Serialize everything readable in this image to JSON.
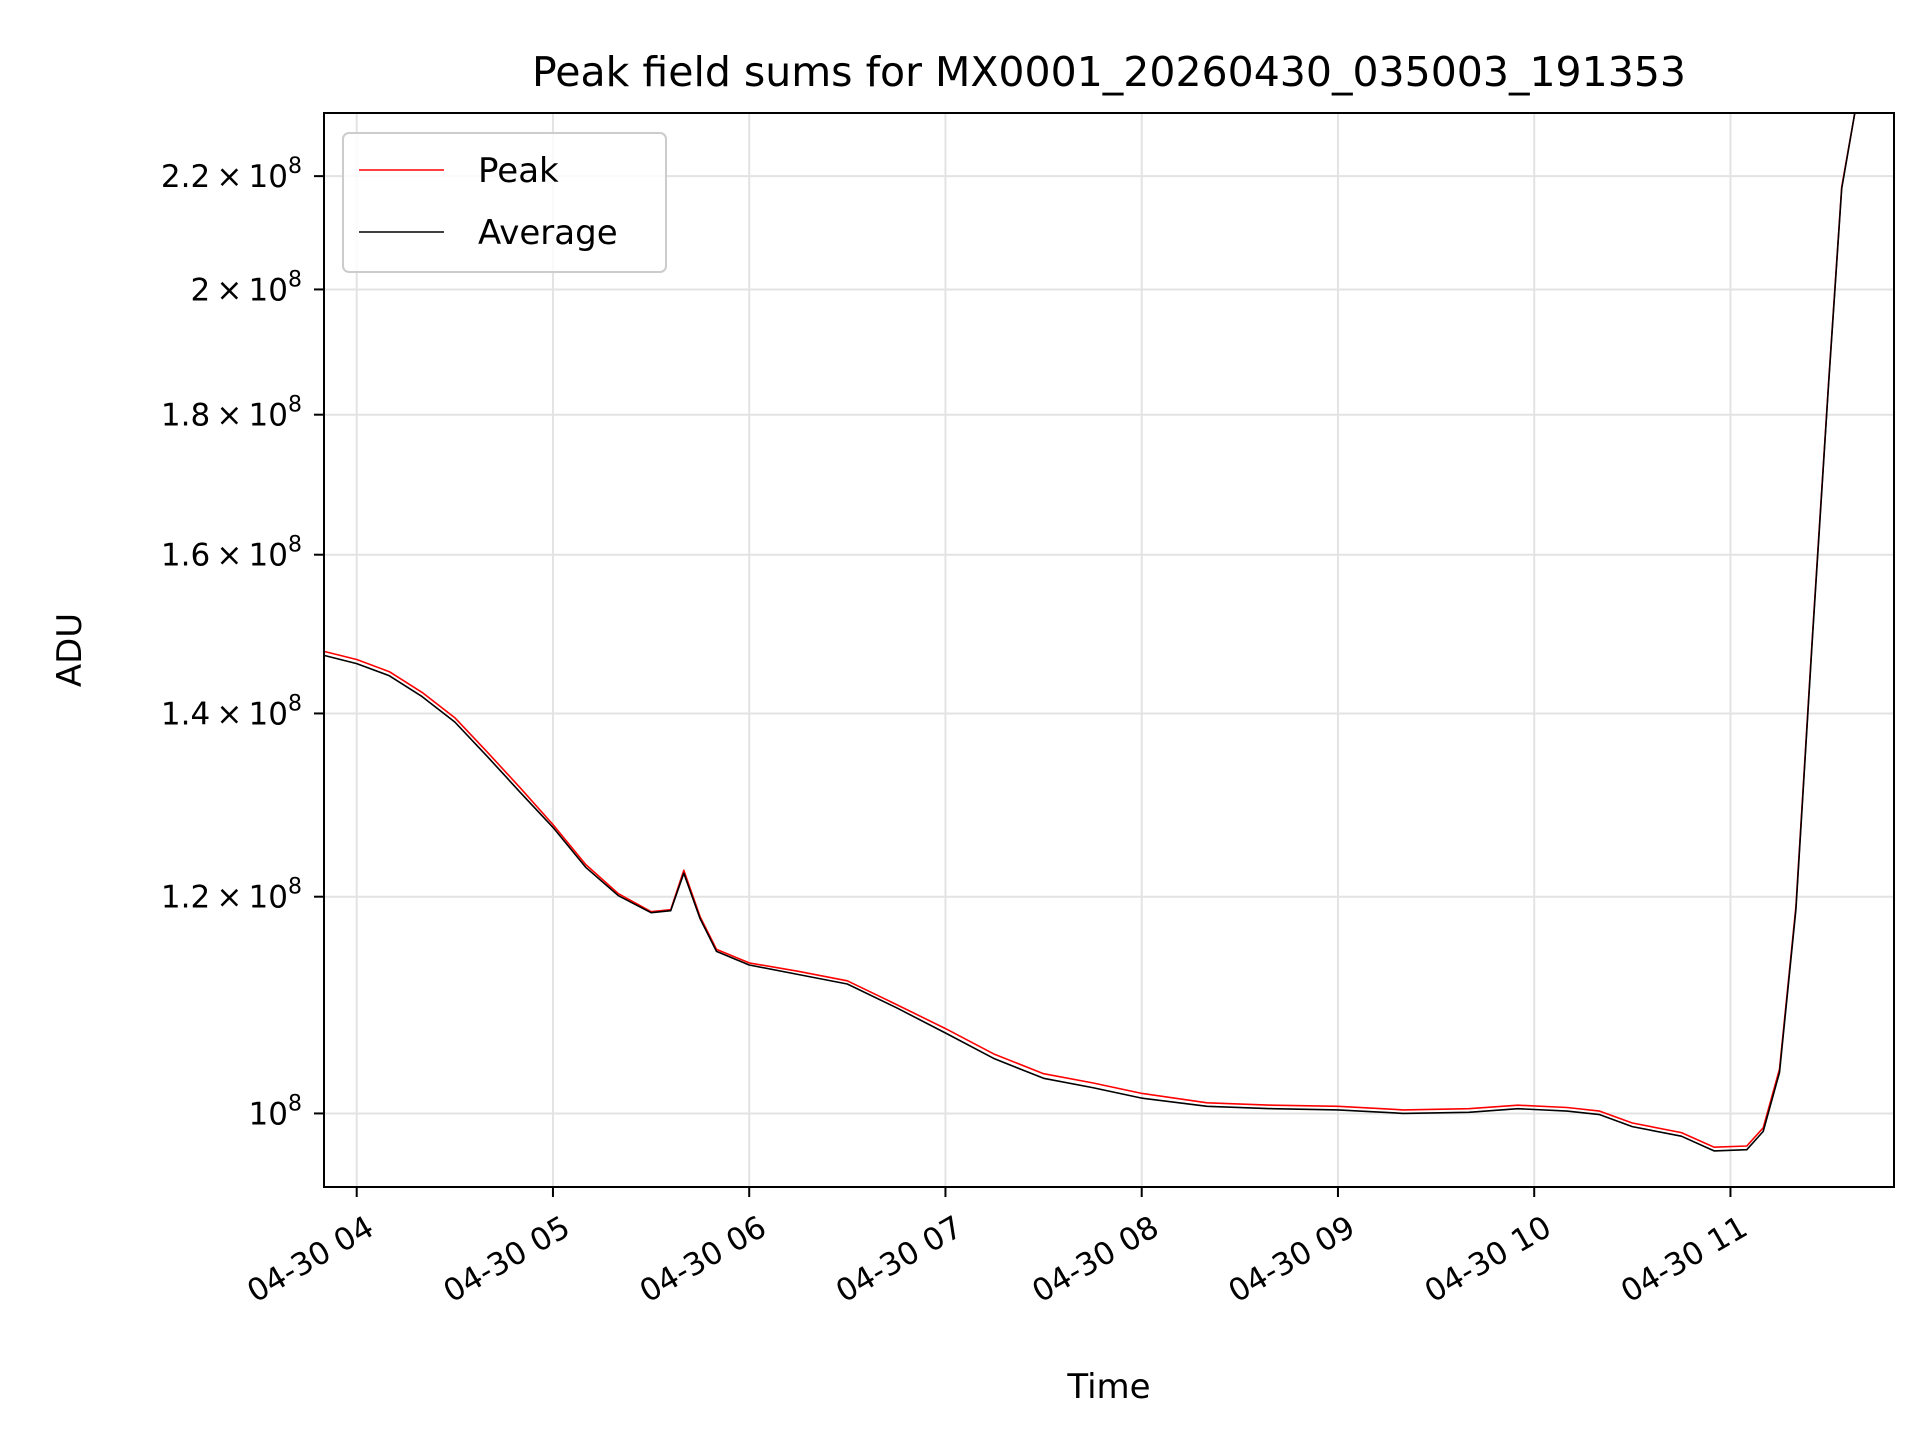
{
  "chart_data": {
    "type": "line",
    "title": "Peak field sums for MX0001_20260430_035003_191353",
    "xlabel": "Time",
    "ylabel": "ADU",
    "x_is_time": true,
    "xlim": [
      "2026-04-30T03:50:00",
      "2026-04-30T11:50:00"
    ],
    "ylim": [
      94000000,
      232000000
    ],
    "yscale": "log",
    "grid": true,
    "legend_position": "top-left",
    "x_ticks": [
      {
        "value": "2026-04-30T04:00:00",
        "label": "04-30 04"
      },
      {
        "value": "2026-04-30T05:00:00",
        "label": "04-30 05"
      },
      {
        "value": "2026-04-30T06:00:00",
        "label": "04-30 06"
      },
      {
        "value": "2026-04-30T07:00:00",
        "label": "04-30 07"
      },
      {
        "value": "2026-04-30T08:00:00",
        "label": "04-30 08"
      },
      {
        "value": "2026-04-30T09:00:00",
        "label": "04-30 09"
      },
      {
        "value": "2026-04-30T10:00:00",
        "label": "04-30 10"
      },
      {
        "value": "2026-04-30T11:00:00",
        "label": "04-30 11"
      }
    ],
    "y_ticks": [
      {
        "value": 100000000,
        "mantissa": "",
        "exp": "8"
      },
      {
        "value": 120000000,
        "mantissa": "1.2",
        "exp": "8"
      },
      {
        "value": 140000000,
        "mantissa": "1.4",
        "exp": "8"
      },
      {
        "value": 160000000,
        "mantissa": "1.6",
        "exp": "8"
      },
      {
        "value": 180000000,
        "mantissa": "1.8",
        "exp": "8"
      },
      {
        "value": 200000000,
        "mantissa": "2",
        "exp": "8"
      },
      {
        "value": 220000000,
        "mantissa": "2.2",
        "exp": "8"
      }
    ],
    "series": [
      {
        "name": "Peak",
        "color": "#ff0000",
        "x": [
          "2026-04-30T03:50:00",
          "2026-04-30T04:00:00",
          "2026-04-30T04:10:00",
          "2026-04-30T04:20:00",
          "2026-04-30T04:30:00",
          "2026-04-30T04:40:00",
          "2026-04-30T04:50:00",
          "2026-04-30T05:00:00",
          "2026-04-30T05:10:00",
          "2026-04-30T05:20:00",
          "2026-04-30T05:30:00",
          "2026-04-30T05:36:00",
          "2026-04-30T05:40:00",
          "2026-04-30T05:45:00",
          "2026-04-30T05:50:00",
          "2026-04-30T06:00:00",
          "2026-04-30T06:15:00",
          "2026-04-30T06:30:00",
          "2026-04-30T06:45:00",
          "2026-04-30T07:00:00",
          "2026-04-30T07:15:00",
          "2026-04-30T07:30:00",
          "2026-04-30T07:45:00",
          "2026-04-30T08:00:00",
          "2026-04-30T08:20:00",
          "2026-04-30T08:40:00",
          "2026-04-30T09:00:00",
          "2026-04-30T09:20:00",
          "2026-04-30T09:40:00",
          "2026-04-30T09:55:00",
          "2026-04-30T10:10:00",
          "2026-04-30T10:20:00",
          "2026-04-30T10:30:00",
          "2026-04-30T10:45:00",
          "2026-04-30T10:55:00",
          "2026-04-30T11:05:00",
          "2026-04-30T11:10:00",
          "2026-04-30T11:15:00",
          "2026-04-30T11:20:00",
          "2026-04-30T11:25:00",
          "2026-04-30T11:30:00",
          "2026-04-30T11:34:00",
          "2026-04-30T11:38:00"
        ],
        "y": [
          147500000,
          146500000,
          145000000,
          142500000,
          139500000,
          135500000,
          131500000,
          127500000,
          123300000,
          120300000,
          118500000,
          118700000,
          122700000,
          118000000,
          114800000,
          113500000,
          112700000,
          111800000,
          109600000,
          107400000,
          105100000,
          103400000,
          102600000,
          101700000,
          100900000,
          100700000,
          100600000,
          100300000,
          100400000,
          100700000,
          100500000,
          100200000,
          99200000,
          98400000,
          97200000,
          97300000,
          98800000,
          103800000,
          119000000,
          149000000,
          185000000,
          218000000,
          232000000
        ]
      },
      {
        "name": "Average",
        "color": "#000000",
        "x": [
          "2026-04-30T03:50:00",
          "2026-04-30T04:00:00",
          "2026-04-30T04:10:00",
          "2026-04-30T04:20:00",
          "2026-04-30T04:30:00",
          "2026-04-30T04:40:00",
          "2026-04-30T04:50:00",
          "2026-04-30T05:00:00",
          "2026-04-30T05:10:00",
          "2026-04-30T05:20:00",
          "2026-04-30T05:30:00",
          "2026-04-30T05:36:00",
          "2026-04-30T05:40:00",
          "2026-04-30T05:45:00",
          "2026-04-30T05:50:00",
          "2026-04-30T06:00:00",
          "2026-04-30T06:15:00",
          "2026-04-30T06:30:00",
          "2026-04-30T06:45:00",
          "2026-04-30T07:00:00",
          "2026-04-30T07:15:00",
          "2026-04-30T07:30:00",
          "2026-04-30T07:45:00",
          "2026-04-30T08:00:00",
          "2026-04-30T08:20:00",
          "2026-04-30T08:40:00",
          "2026-04-30T09:00:00",
          "2026-04-30T09:20:00",
          "2026-04-30T09:40:00",
          "2026-04-30T09:55:00",
          "2026-04-30T10:10:00",
          "2026-04-30T10:20:00",
          "2026-04-30T10:30:00",
          "2026-04-30T10:45:00",
          "2026-04-30T10:55:00",
          "2026-04-30T11:05:00",
          "2026-04-30T11:10:00",
          "2026-04-30T11:15:00",
          "2026-04-30T11:20:00",
          "2026-04-30T11:25:00",
          "2026-04-30T11:30:00",
          "2026-04-30T11:34:00",
          "2026-04-30T11:38:00"
        ],
        "y": [
          147000000,
          146000000,
          144500000,
          142000000,
          139000000,
          135000000,
          131000000,
          127200000,
          123000000,
          120100000,
          118400000,
          118600000,
          122400000,
          117800000,
          114600000,
          113300000,
          112400000,
          111500000,
          109300000,
          107000000,
          104700000,
          103000000,
          102200000,
          101300000,
          100600000,
          100400000,
          100300000,
          100000000,
          100100000,
          100400000,
          100200000,
          99900000,
          98900000,
          98100000,
          96900000,
          97000000,
          98500000,
          103500000,
          118700000,
          148700000,
          184700000,
          217700000,
          232000000
        ]
      }
    ]
  }
}
